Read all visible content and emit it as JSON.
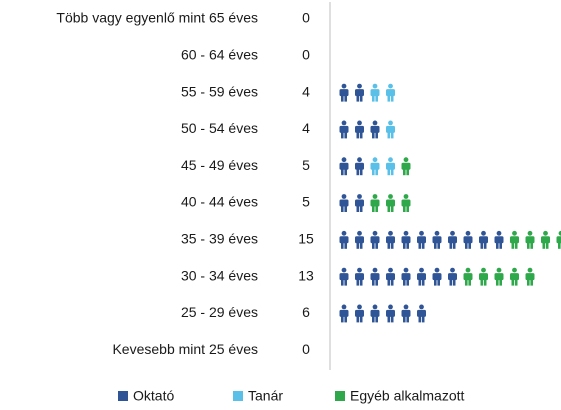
{
  "chart_data": {
    "type": "pictogram",
    "categories": [
      "Több vagy egyenlő mint 65 éves",
      "60 - 64 éves",
      "55 - 59 éves",
      "50 - 54 éves",
      "45 - 49 éves",
      "40 - 44 éves",
      "35 - 39 éves",
      "30 - 34 éves",
      "25 - 29 éves",
      "Kevesebb mint 25 éves"
    ],
    "totals": [
      0,
      0,
      4,
      4,
      5,
      5,
      15,
      13,
      6,
      0
    ],
    "series": [
      {
        "name": "Oktató",
        "color": "#2f5597",
        "values": [
          0,
          0,
          2,
          3,
          2,
          2,
          11,
          8,
          6,
          0
        ]
      },
      {
        "name": "Tanár",
        "color": "#5bc0e8",
        "values": [
          0,
          0,
          2,
          1,
          2,
          0,
          0,
          0,
          0,
          0
        ]
      },
      {
        "name": "Egyéb alkalmazott",
        "color": "#2ea84a",
        "values": [
          0,
          0,
          0,
          0,
          1,
          3,
          4,
          5,
          0,
          0
        ]
      }
    ]
  }
}
